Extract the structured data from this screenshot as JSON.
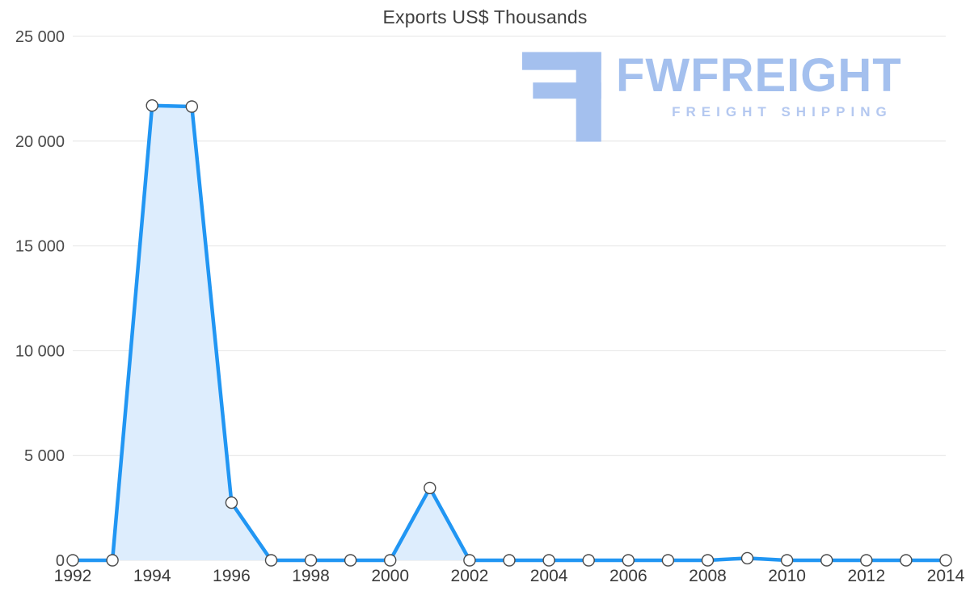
{
  "title": "Exports US$ Thousands",
  "logo": {
    "title": "FWFREIGHT",
    "subtitle": "FREIGHT SHIPPING",
    "color": "#a4c0ee",
    "subtitle_color": "#b4c8f0"
  },
  "colors": {
    "line": "#2196f3",
    "fill": "#ddedfd",
    "grid": "#e4e4e4",
    "axis_text": "#4a4a4a",
    "xaxis_text": "#3b3b3b",
    "marker_fill": "#ffffff",
    "marker_stroke": "#4a4a4a"
  },
  "chart_data": {
    "type": "area",
    "title": "Exports US$ Thousands",
    "xlabel": "",
    "ylabel": "",
    "legend": "none",
    "grid": "horizontal",
    "x": [
      1992,
      1993,
      1994,
      1995,
      1996,
      1997,
      1998,
      1999,
      2000,
      2001,
      2002,
      2003,
      2004,
      2005,
      2006,
      2007,
      2008,
      2009,
      2010,
      2011,
      2012,
      2013,
      2014
    ],
    "values": [
      0,
      0,
      21700,
      21650,
      2750,
      0,
      0,
      0,
      0,
      3450,
      0,
      0,
      0,
      0,
      0,
      0,
      0,
      100,
      0,
      0,
      0,
      0,
      0
    ],
    "ylim": [
      0,
      25000
    ],
    "ytick_step": 5000,
    "ytick_labels": [
      "0",
      "5 000",
      "10 000",
      "15 000",
      "20 000",
      "25 000"
    ],
    "xtick_labels": [
      "1992",
      "1994",
      "1996",
      "1998",
      "2000",
      "2002",
      "2004",
      "2006",
      "2008",
      "2010",
      "2012",
      "2014"
    ]
  }
}
